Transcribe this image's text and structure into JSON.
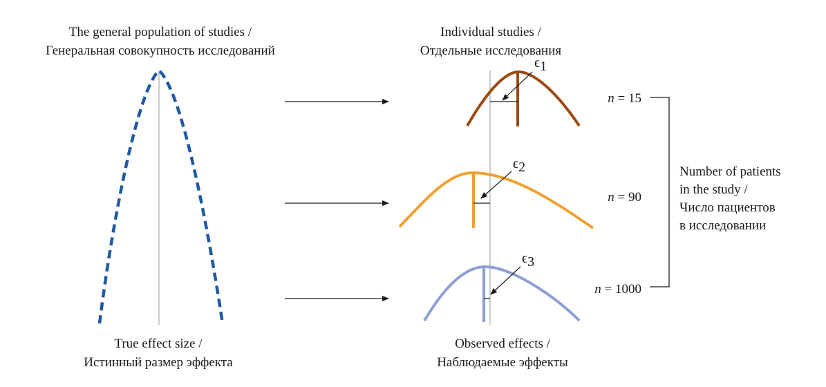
{
  "left_panel": {
    "title_en": "The general population of studies /",
    "title_ru": "Генеральная совокупность исследований",
    "label_en": "True effect size /",
    "label_ru": "Истинный размер эффекта"
  },
  "middle_panel": {
    "title_en": "Individual studies /",
    "title_ru": "Отдельные исследования",
    "label_en": "Observed effects /",
    "label_ru": "Наблюдаемые эффекты"
  },
  "studies": [
    {
      "n_prefix": "n",
      "n_value": "= 15",
      "epsilon": "ϵ",
      "epsilon_sub": "1",
      "color": "#9b4a12"
    },
    {
      "n_prefix": "n",
      "n_value": "= 90",
      "epsilon": "ϵ",
      "epsilon_sub": "2",
      "color": "#f0a030"
    },
    {
      "n_prefix": "n",
      "n_value": "= 1000",
      "epsilon": "ϵ",
      "epsilon_sub": "3",
      "color": "#8f9fd4"
    }
  ],
  "population_color": "#1f5aa0",
  "right_label": {
    "line1": "Number of patients",
    "line2": "in the study /",
    "line3": "Число пациентов",
    "line4": "в исследовании"
  }
}
